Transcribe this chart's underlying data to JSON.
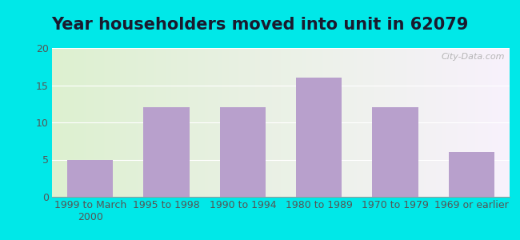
{
  "title": "Year householders moved into unit in 62079",
  "categories": [
    "1999 to March\n2000",
    "1995 to 1998",
    "1990 to 1994",
    "1980 to 1989",
    "1970 to 1979",
    "1969 or earlier"
  ],
  "values": [
    5,
    12,
    12,
    16,
    12,
    6
  ],
  "bar_color": "#b8a0cc",
  "ylim": [
    0,
    20
  ],
  "yticks": [
    0,
    5,
    10,
    15,
    20
  ],
  "background_outer": "#00e8e8",
  "background_inner_left": "#ddf0d0",
  "background_inner_right": "#f8f2fc",
  "title_fontsize": 15,
  "tick_fontsize": 9,
  "watermark": "City-Data.com",
  "title_color": "#1a1a2e",
  "tick_color": "#555555"
}
